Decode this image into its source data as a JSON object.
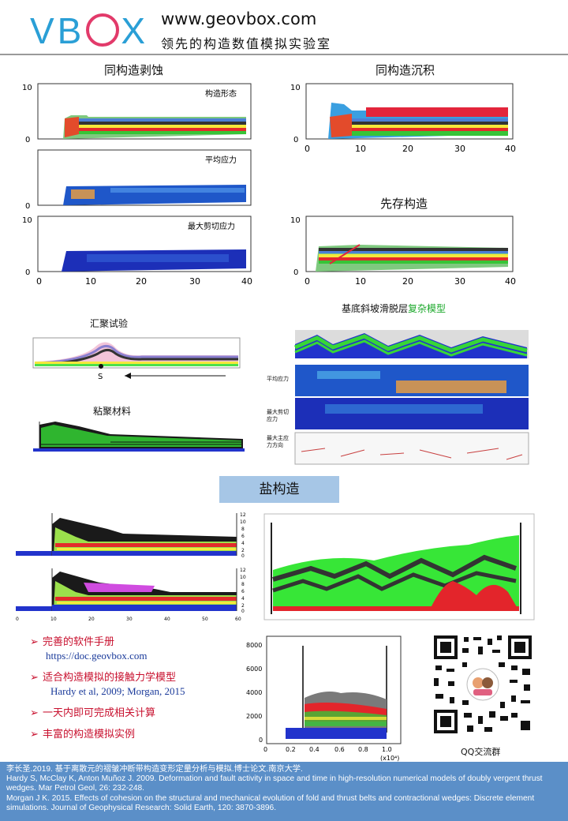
{
  "header": {
    "logo_text": "VBOX",
    "site": "www.geovbox.com",
    "tagline": "领先的构造数值模拟实验室"
  },
  "panels": {
    "erosion_title": "同构造剥蚀",
    "erosion_labels": [
      "构造形态",
      "平均应力",
      "最大剪切应力"
    ],
    "sedimentation_title": "同构造沉积",
    "preexisting_title": "先存构造",
    "y_ticks": [
      "10",
      "0"
    ],
    "x_ticks": [
      "0",
      "10",
      "20",
      "30",
      "40"
    ],
    "convergence_title": "汇聚试验",
    "convergence_s": "S",
    "cohesive_title": "粘聚材料",
    "ramp_title_prefix": "基底斜坡滑脱层",
    "ramp_title_suffix": "复杂模型",
    "ramp_labels": [
      "平均应力",
      "最大剪切应力",
      "最大主应力方向"
    ],
    "salt_title": "盐构造",
    "salt_y_ticks": [
      "12",
      "10",
      "8",
      "6",
      "4",
      "2",
      "0"
    ],
    "salt_x_ticks": [
      "0",
      "10",
      "20",
      "30",
      "40",
      "50",
      "60"
    ],
    "plot4_y_ticks": [
      "8000",
      "6000",
      "4000",
      "2000",
      "0"
    ],
    "plot4_x_ticks": [
      "0",
      "0.2",
      "0.4",
      "0.6",
      "0.8",
      "1.0"
    ],
    "plot4_x_unit": "(x10⁴)"
  },
  "features": [
    {
      "text": "完善的软件手册",
      "sub": "https://doc.geovbox.com"
    },
    {
      "text": "适合构造模拟的接触力学模型",
      "sub": "Hardy et al, 2009; Morgan, 2015"
    },
    {
      "text": "一天内即可完成相关计算",
      "sub": ""
    },
    {
      "text": "丰富的构造模拟实例",
      "sub": ""
    }
  ],
  "qr_caption": "QQ交流群",
  "references": [
    "李长圣.2019. 基于离散元的褶皱冲断带构造变形定量分析与模拟.博士论文.南京大学.",
    "Hardy S, McClay K, Anton Muñoz J. 2009.  Deformation and fault activity in space and time in high-resolution numerical models of doubly vergent thrust wedges. Mar Petrol Geol, 26:  232-248.",
    "Morgan J K. 2015.  Effects of cohesion on the structural and mechanical evolution of fold and thrust belts and contractional wedges: Discrete element simulations. Journal of Geophysical Research: Solid Earth, 120: 3870-3896."
  ],
  "colors": {
    "accent": "#2a9fd6",
    "logo_o": "#e23a6a",
    "feature_red": "#c8102e",
    "feature_blue": "#1a3a9a",
    "footer": "#5b8fc8",
    "salt_box": "#a6c6e6"
  }
}
